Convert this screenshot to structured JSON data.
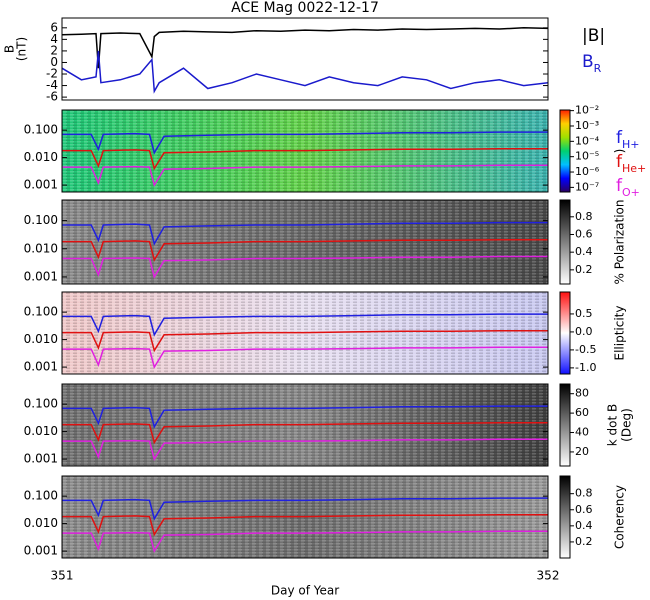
{
  "chart_data": [
    {
      "type": "line",
      "title": "ACE Mag 0022-12-17",
      "ylabel": [
        "B",
        "(nT)"
      ],
      "xlim": [
        351,
        352
      ],
      "ylim": [
        -6.5,
        7.7
      ],
      "yticks": [
        6,
        4,
        2,
        0,
        -2,
        -4,
        -6
      ],
      "x": [
        351,
        351.04,
        351.07,
        351.075,
        351.08,
        351.12,
        351.16,
        351.185,
        351.19,
        351.2,
        351.25,
        351.3,
        351.35,
        351.4,
        351.45,
        351.5,
        351.55,
        351.6,
        351.65,
        351.7,
        351.75,
        351.8,
        351.85,
        351.9,
        351.95,
        352
      ],
      "series": [
        {
          "name": "|B|",
          "color": "#000000",
          "values": [
            4.8,
            4.9,
            5.0,
            -1.0,
            5.0,
            5.1,
            5.0,
            1.0,
            4.5,
            5.2,
            5.4,
            5.3,
            5.2,
            5.5,
            5.4,
            5.6,
            5.5,
            5.7,
            5.6,
            5.8,
            5.7,
            5.8,
            5.9,
            5.8,
            6.0,
            5.9
          ]
        },
        {
          "name": "B_R",
          "color": "#1a1acc",
          "values": [
            -1.0,
            -3.0,
            -2.5,
            2.0,
            -3.5,
            -3.0,
            -2.0,
            0.5,
            -5.0,
            -3.5,
            -1.0,
            -4.5,
            -3.5,
            -2.0,
            -3.0,
            -4.0,
            -2.5,
            -3.5,
            -4.0,
            -2.5,
            -3.0,
            -4.5,
            -3.5,
            -3.0,
            -4.0,
            -3.5
          ]
        }
      ]
    },
    {
      "type": "spectrogram",
      "xlim": [
        351,
        352
      ],
      "ylim": [
        0.00056,
        0.54
      ],
      "yticks": [
        {
          "value": 0.1,
          "label": "0.100"
        },
        {
          "value": 0.01,
          "label": "0.010"
        },
        {
          "value": 0.001,
          "label": "0.001"
        }
      ],
      "colormap": [
        "#2a0060",
        "#0000ff",
        "#00c0ff",
        "#00d070",
        "#a0e000",
        "#ffd000",
        "#ff2000"
      ],
      "background": [
        "#1fc87a",
        "#64d24a",
        "#3cb4b0"
      ],
      "clim": [
        5e-08,
        0.011
      ],
      "clog": true,
      "cticks": [
        {
          "value": 0.01,
          "label": "10⁻²"
        },
        {
          "value": 0.001,
          "label": "10⁻³"
        },
        {
          "value": 0.0001,
          "label": "10⁻⁴"
        },
        {
          "value": 1e-05,
          "label": "10⁻⁵"
        },
        {
          "value": 1e-06,
          "label": "10⁻⁶"
        },
        {
          "value": 1e-07,
          "label": "10⁻⁷"
        }
      ],
      "clabel": ")",
      "x": [
        351,
        351.06,
        351.075,
        351.085,
        351.15,
        351.18,
        351.19,
        351.21,
        351.3,
        351.4,
        351.5,
        351.6,
        351.7,
        351.8,
        351.9,
        352
      ],
      "series": [
        {
          "name": "f_H+",
          "color": "#2020e0",
          "values": [
            0.07,
            0.07,
            0.02,
            0.07,
            0.075,
            0.07,
            0.015,
            0.06,
            0.065,
            0.07,
            0.07,
            0.075,
            0.08,
            0.08,
            0.085,
            0.085
          ]
        },
        {
          "name": "f_He+",
          "color": "#e01010",
          "values": [
            0.018,
            0.018,
            0.005,
            0.018,
            0.019,
            0.018,
            0.004,
            0.015,
            0.016,
            0.018,
            0.018,
            0.019,
            0.02,
            0.02,
            0.021,
            0.021
          ]
        },
        {
          "name": "f_O+",
          "color": "#e020e0",
          "values": [
            0.0045,
            0.0045,
            0.0012,
            0.0045,
            0.0047,
            0.0045,
            0.001,
            0.0038,
            0.004,
            0.0045,
            0.0045,
            0.0047,
            0.005,
            0.005,
            0.0053,
            0.0053
          ]
        }
      ]
    },
    {
      "type": "spectrogram",
      "xlim": [
        351,
        352
      ],
      "ylim": [
        0.00056,
        0.54
      ],
      "yticks": [
        {
          "value": 0.1,
          "label": "0.100"
        },
        {
          "value": 0.01,
          "label": "0.010"
        },
        {
          "value": 0.001,
          "label": "0.001"
        }
      ],
      "colormap": [
        "#ffffff",
        "#000000"
      ],
      "background": [
        "#8a8a8a",
        "#6a6a6a",
        "#4a4a4a"
      ],
      "clim": [
        0.04,
        0.99
      ],
      "clog": false,
      "cticks": [
        0.8,
        0.6,
        0.4,
        0.2
      ],
      "clabel": "% Polarization",
      "x": [
        351,
        351.06,
        351.075,
        351.085,
        351.15,
        351.18,
        351.19,
        351.21,
        351.3,
        351.4,
        351.5,
        351.6,
        351.7,
        351.8,
        351.9,
        352
      ],
      "series": [
        {
          "color": "#2020e0",
          "values": [
            0.07,
            0.07,
            0.02,
            0.07,
            0.075,
            0.07,
            0.015,
            0.06,
            0.065,
            0.07,
            0.07,
            0.075,
            0.08,
            0.08,
            0.085,
            0.085
          ]
        },
        {
          "color": "#e01010",
          "values": [
            0.018,
            0.018,
            0.005,
            0.018,
            0.019,
            0.018,
            0.004,
            0.015,
            0.016,
            0.018,
            0.018,
            0.019,
            0.02,
            0.02,
            0.021,
            0.021
          ]
        },
        {
          "color": "#e020e0",
          "values": [
            0.0045,
            0.0045,
            0.0012,
            0.0045,
            0.0047,
            0.0045,
            0.001,
            0.0038,
            0.004,
            0.0045,
            0.0045,
            0.0047,
            0.005,
            0.005,
            0.0053,
            0.0053
          ]
        }
      ]
    },
    {
      "type": "spectrogram",
      "xlim": [
        351,
        352
      ],
      "ylim": [
        0.00056,
        0.54
      ],
      "yticks": [
        {
          "value": 0.1,
          "label": "0.100"
        },
        {
          "value": 0.01,
          "label": "0.010"
        },
        {
          "value": 0.001,
          "label": "0.001"
        }
      ],
      "colormap": [
        "#1010ff",
        "#ffffff",
        "#ff1010"
      ],
      "background": [
        "#f0c8c8",
        "#e8e0f0",
        "#c8c8f0"
      ],
      "clim": [
        -1.17,
        1.11
      ],
      "clog": false,
      "cticks": [
        0.5,
        {
          "value": 0.0,
          "label": "0.0"
        },
        -0.5,
        {
          "value": -1.0,
          "label": "-1.0"
        }
      ],
      "clabel": "Ellipticity",
      "x": [
        351,
        351.06,
        351.075,
        351.085,
        351.15,
        351.18,
        351.19,
        351.21,
        351.3,
        351.4,
        351.5,
        351.6,
        351.7,
        351.8,
        351.9,
        352
      ],
      "series": [
        {
          "color": "#2020e0",
          "values": [
            0.07,
            0.07,
            0.02,
            0.07,
            0.075,
            0.07,
            0.015,
            0.06,
            0.065,
            0.07,
            0.07,
            0.075,
            0.08,
            0.08,
            0.085,
            0.085
          ]
        },
        {
          "color": "#e01010",
          "values": [
            0.018,
            0.018,
            0.005,
            0.018,
            0.019,
            0.018,
            0.004,
            0.015,
            0.016,
            0.018,
            0.018,
            0.019,
            0.02,
            0.02,
            0.021,
            0.021
          ]
        },
        {
          "color": "#e020e0",
          "values": [
            0.0045,
            0.0045,
            0.0012,
            0.0045,
            0.0047,
            0.0045,
            0.001,
            0.0038,
            0.004,
            0.0045,
            0.0045,
            0.0047,
            0.005,
            0.005,
            0.0053,
            0.0053
          ]
        }
      ]
    },
    {
      "type": "spectrogram",
      "xlim": [
        351,
        352
      ],
      "ylim": [
        0.00056,
        0.54
      ],
      "yticks": [
        {
          "value": 0.1,
          "label": "0.100"
        },
        {
          "value": 0.01,
          "label": "0.010"
        },
        {
          "value": 0.001,
          "label": "0.001"
        }
      ],
      "colormap": [
        "#ffffff",
        "#000000"
      ],
      "background": [
        "#707070",
        "#888888",
        "#404040"
      ],
      "clim": [
        5.5,
        90
      ],
      "clog": false,
      "cticks": [
        80,
        60,
        40,
        20
      ],
      "clabel": [
        "k dot B",
        "(Deg)"
      ],
      "x": [
        351,
        351.06,
        351.075,
        351.085,
        351.15,
        351.18,
        351.19,
        351.21,
        351.3,
        351.4,
        351.5,
        351.6,
        351.7,
        351.8,
        351.9,
        352
      ],
      "series": [
        {
          "color": "#2020e0",
          "values": [
            0.07,
            0.07,
            0.02,
            0.07,
            0.075,
            0.07,
            0.015,
            0.06,
            0.065,
            0.07,
            0.07,
            0.075,
            0.08,
            0.08,
            0.085,
            0.085
          ]
        },
        {
          "color": "#e01010",
          "values": [
            0.018,
            0.018,
            0.005,
            0.018,
            0.019,
            0.018,
            0.004,
            0.015,
            0.016,
            0.018,
            0.018,
            0.019,
            0.02,
            0.02,
            0.021,
            0.021
          ]
        },
        {
          "color": "#e020e0",
          "values": [
            0.0045,
            0.0045,
            0.0012,
            0.0045,
            0.0047,
            0.0045,
            0.001,
            0.0038,
            0.004,
            0.0045,
            0.0045,
            0.0047,
            0.005,
            0.005,
            0.0053,
            0.0053
          ]
        }
      ]
    },
    {
      "type": "spectrogram",
      "xlim": [
        351,
        352
      ],
      "ylim": [
        0.00056,
        0.54
      ],
      "yticks": [
        {
          "value": 0.1,
          "label": "0.100"
        },
        {
          "value": 0.01,
          "label": "0.010"
        },
        {
          "value": 0.001,
          "label": "0.001"
        }
      ],
      "colormap": [
        "#ffffff",
        "#000000"
      ],
      "background": [
        "#8c8c8c",
        "#6e6e6e",
        "#9a9a9a"
      ],
      "clim": [
        0.0,
        1.02
      ],
      "clog": false,
      "cticks": [
        0.8,
        0.6,
        0.4,
        0.2
      ],
      "clabel": "Coherency",
      "xticks": [
        351,
        352
      ],
      "xlabel": "Day of Year",
      "x": [
        351,
        351.06,
        351.075,
        351.085,
        351.15,
        351.18,
        351.19,
        351.21,
        351.3,
        351.4,
        351.5,
        351.6,
        351.7,
        351.8,
        351.9,
        352
      ],
      "series": [
        {
          "color": "#2020e0",
          "values": [
            0.07,
            0.07,
            0.02,
            0.07,
            0.075,
            0.07,
            0.015,
            0.06,
            0.065,
            0.07,
            0.07,
            0.075,
            0.08,
            0.08,
            0.085,
            0.085
          ]
        },
        {
          "color": "#e01010",
          "values": [
            0.018,
            0.018,
            0.005,
            0.018,
            0.019,
            0.018,
            0.004,
            0.015,
            0.016,
            0.018,
            0.018,
            0.019,
            0.02,
            0.02,
            0.021,
            0.021
          ]
        },
        {
          "color": "#e020e0",
          "values": [
            0.0045,
            0.0045,
            0.0012,
            0.0045,
            0.0047,
            0.0045,
            0.001,
            0.0038,
            0.004,
            0.0045,
            0.0045,
            0.0047,
            0.005,
            0.005,
            0.0053,
            0.0053
          ]
        }
      ]
    }
  ]
}
